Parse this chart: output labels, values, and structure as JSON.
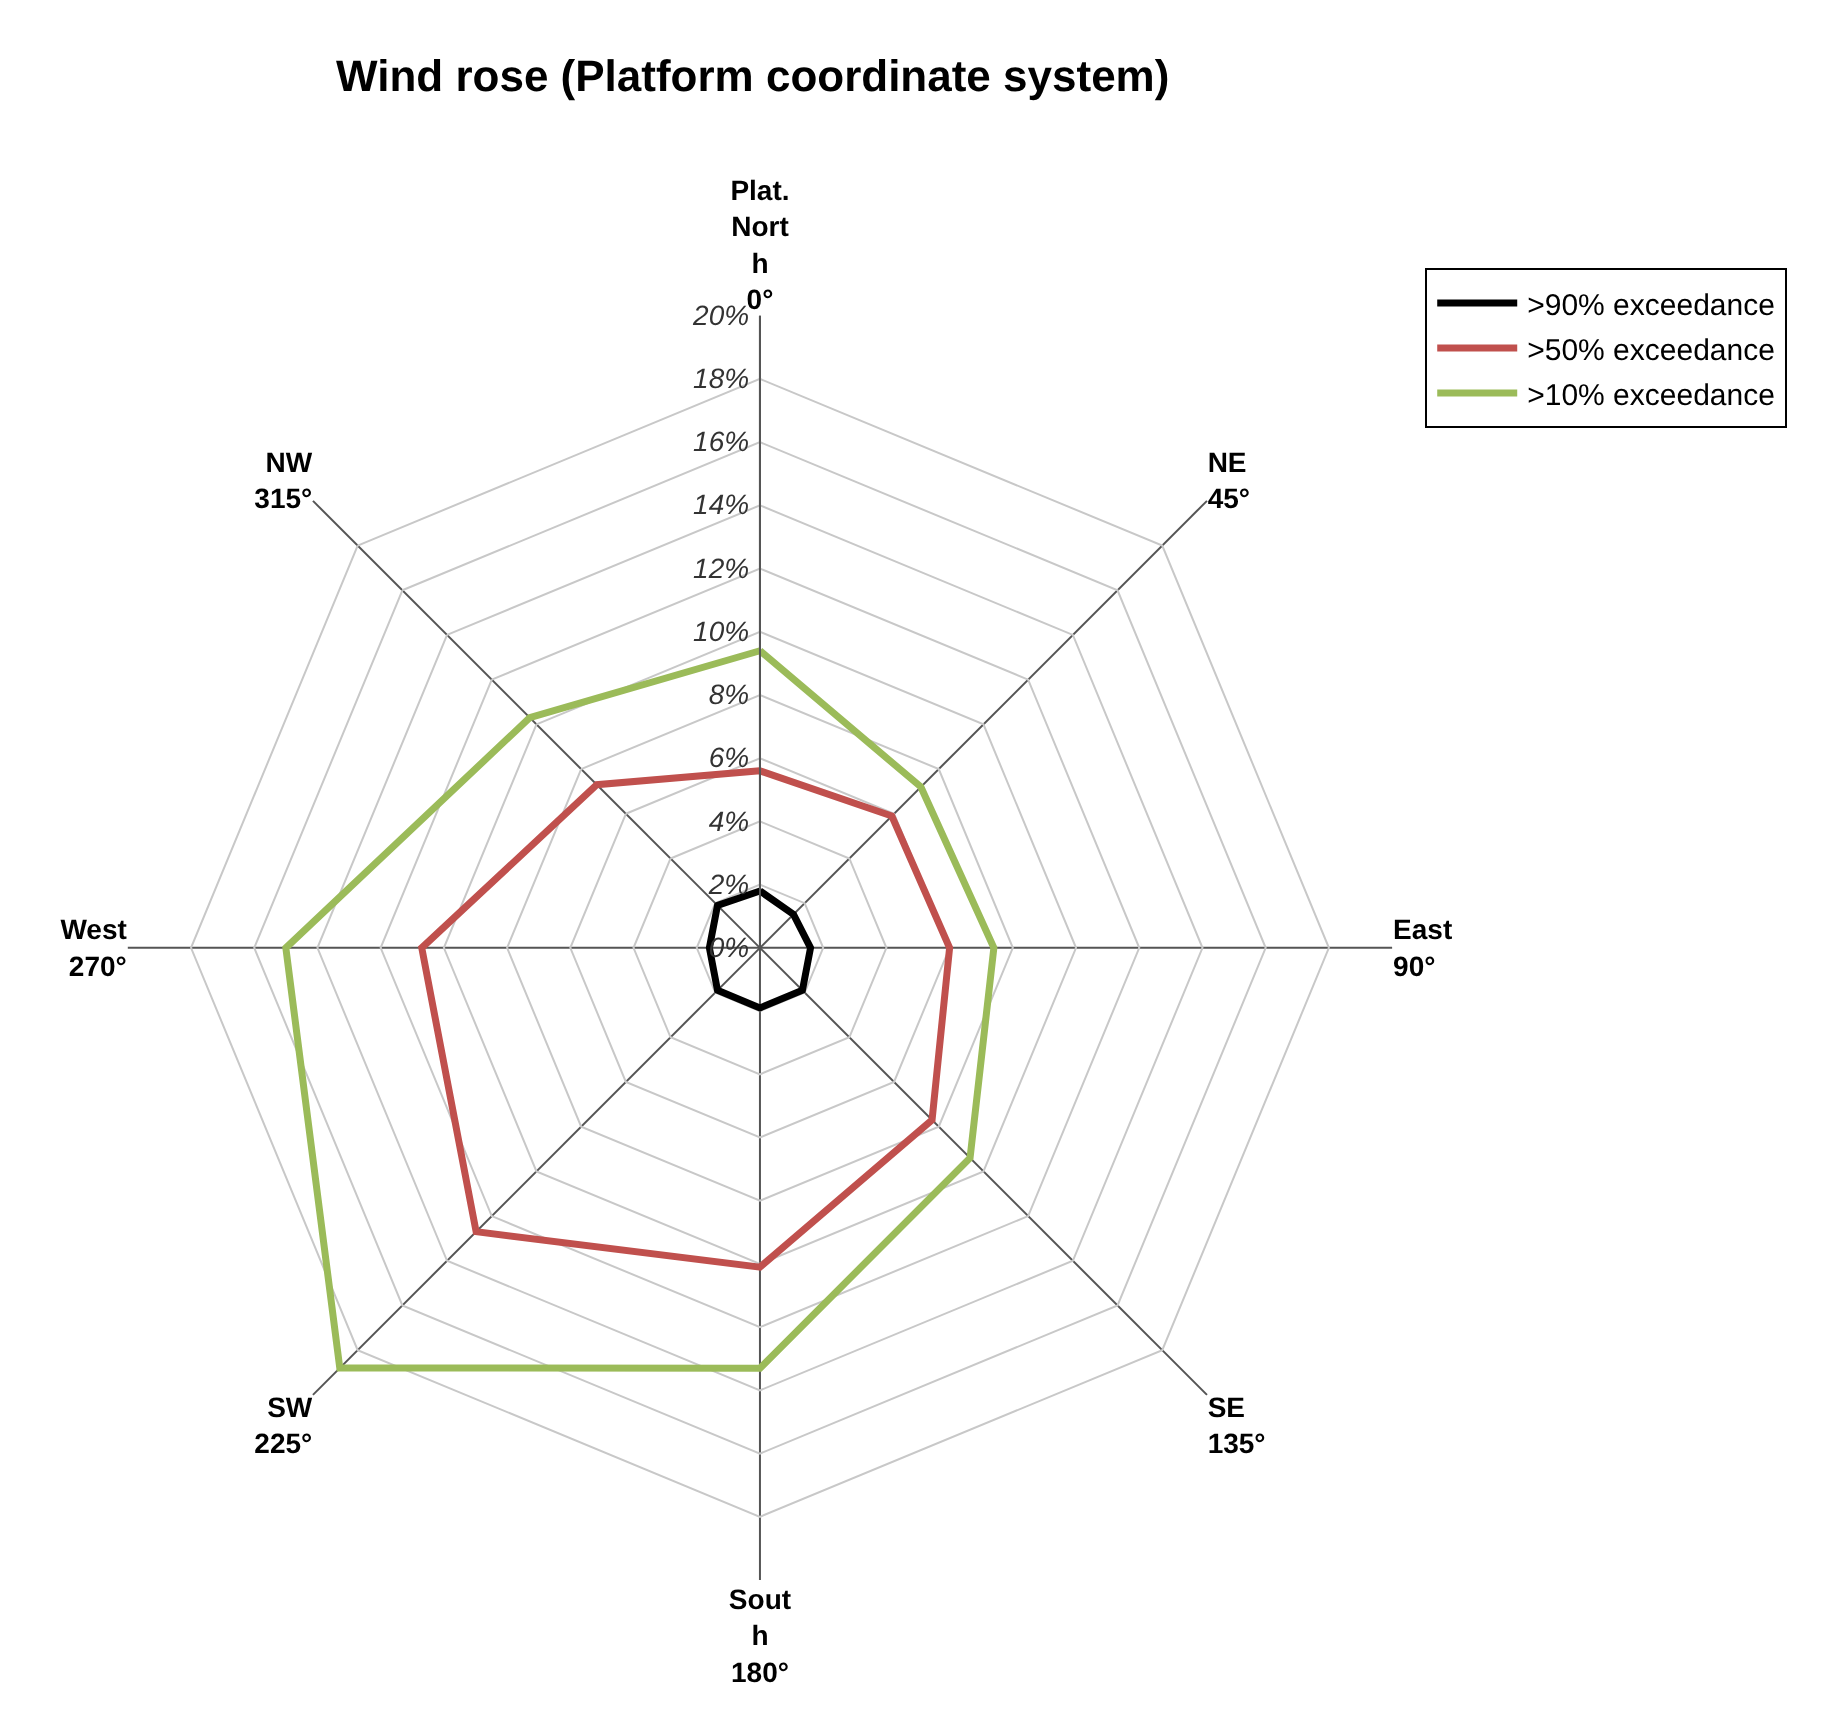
{
  "chart_data": {
    "type": "radar",
    "title": "Wind rose (Platform coordinate system)",
    "categories": [
      "Plat.\nNort\nh\n0°",
      "NE\n45°",
      "East\n90°",
      "SE\n135°",
      "Sout\nh\n180°",
      "SW\n225°",
      "West\n270°",
      "NW\n315°"
    ],
    "series": [
      {
        "name": ">90% exceedance",
        "color": "#000000",
        "values": [
          1.8,
          1.5,
          1.6,
          1.9,
          1.9,
          1.9,
          1.6,
          1.9
        ]
      },
      {
        "name": ">50% exceedance",
        "color": "#c0504d",
        "values": [
          5.6,
          5.9,
          6.0,
          7.7,
          10.1,
          12.7,
          10.7,
          7.3
        ]
      },
      {
        "name": ">10% exceedance",
        "color": "#9bbb59",
        "values": [
          9.4,
          7.2,
          7.4,
          9.4,
          13.3,
          18.8,
          15.0,
          10.3
        ]
      }
    ],
    "ylim": [
      0,
      20
    ],
    "yticks": [
      {
        "value": 0,
        "label": "0%"
      },
      {
        "value": 2,
        "label": "2%"
      },
      {
        "value": 4,
        "label": "4%"
      },
      {
        "value": 6,
        "label": "6%"
      },
      {
        "value": 8,
        "label": "8%"
      },
      {
        "value": 10,
        "label": "10%"
      },
      {
        "value": 12,
        "label": "12%"
      },
      {
        "value": 14,
        "label": "14%"
      },
      {
        "value": 16,
        "label": "16%"
      },
      {
        "value": 18,
        "label": "18%"
      },
      {
        "value": 20,
        "label": "20%"
      }
    ],
    "grid": true,
    "legend": "top right",
    "marker": "none",
    "line_style": "solid"
  }
}
